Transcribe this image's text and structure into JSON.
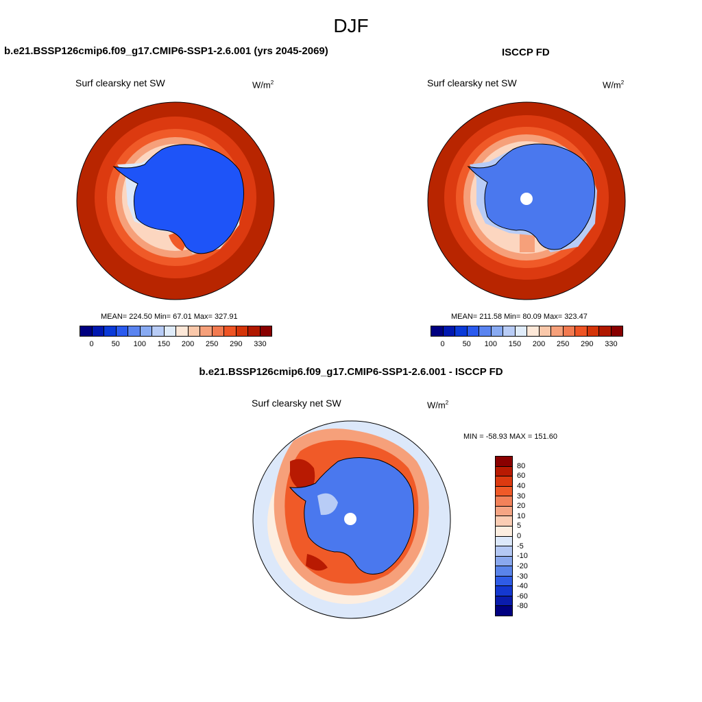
{
  "figure": {
    "title": "DJF",
    "panel1": {
      "header": "b.e21.BSSP126cmip6.f09_g17.CMIP6-SSP1-2.6.001 (yrs 2045-2069)",
      "variable": "Surf clearsky net SW",
      "units_base": "W/m",
      "units_exp": "2",
      "stats": "MEAN= 224.50  Min=  67.01  Max= 327.91"
    },
    "panel2": {
      "header": "ISCCP FD",
      "variable": "Surf clearsky net SW",
      "units_base": "W/m",
      "units_exp": "2",
      "stats": "MEAN= 211.58  Min=  80.09  Max= 323.47"
    },
    "panel3": {
      "header": "b.e21.BSSP126cmip6.f09_g17.CMIP6-SSP1-2.6.001 - ISCCP FD",
      "variable": "Surf clearsky net SW",
      "units_base": "W/m",
      "units_exp": "2",
      "stats": "MIN = -58.93 MAX = 151.60"
    }
  },
  "colorbar_abs": {
    "colors": [
      "#000080",
      "#0018b0",
      "#0a3ad8",
      "#2a5aee",
      "#5a84f0",
      "#88aaf2",
      "#b8ccf6",
      "#e0ecfa",
      "#fde8d8",
      "#fac8aa",
      "#f6a07a",
      "#f27a50",
      "#ee5424",
      "#d43408",
      "#b01800",
      "#880000"
    ],
    "tick_labels": [
      "0",
      "50",
      "100",
      "150",
      "200",
      "250",
      "290",
      "330"
    ]
  },
  "colorbar_diff": {
    "colors": [
      "#8a0000",
      "#b81a02",
      "#dc3a10",
      "#f05a28",
      "#f2825a",
      "#f5a584",
      "#fbcdb4",
      "#fdeee0",
      "#dce8fa",
      "#b4c8f4",
      "#8aa8ee",
      "#5a84ea",
      "#2f5ce6",
      "#1438d0",
      "#0a1cac",
      "#000080"
    ],
    "tick_labels": [
      "80",
      "60",
      "40",
      "30",
      "20",
      "10",
      "5",
      "0",
      "-5",
      "-10",
      "-20",
      "-30",
      "-40",
      "-60",
      "-80"
    ]
  }
}
